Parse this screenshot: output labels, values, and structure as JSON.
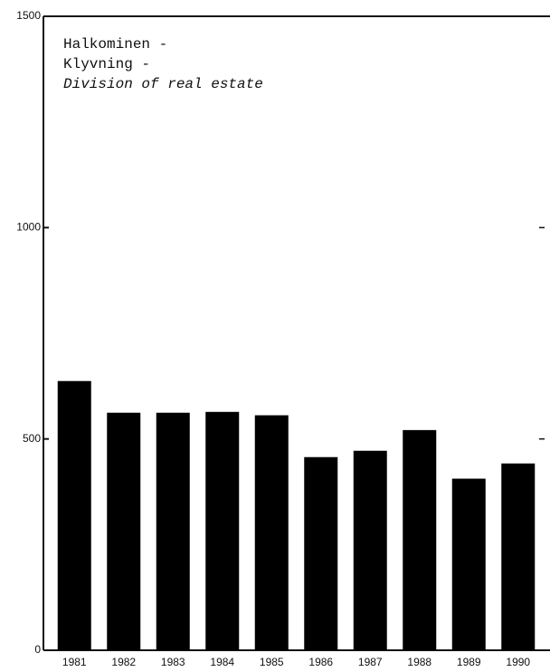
{
  "chart_data": {
    "type": "bar",
    "title_lines": [
      "Halkominen -",
      "Klyvning -",
      "Division of real estate"
    ],
    "categories": [
      "1981",
      "1982",
      "1983",
      "1984",
      "1985",
      "1986",
      "1987",
      "1988",
      "1989",
      "1990"
    ],
    "values": [
      637,
      562,
      562,
      564,
      556,
      457,
      472,
      521,
      406,
      442
    ],
    "color": "#000000",
    "ylim": [
      0,
      1500
    ],
    "yticks": [
      0,
      500,
      1000,
      1500
    ],
    "grid": false
  }
}
